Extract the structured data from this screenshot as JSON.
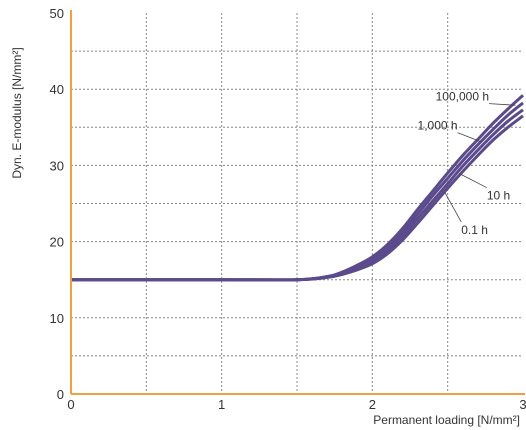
{
  "chart_data": {
    "type": "line",
    "title": "",
    "xlabel": "Permanent loading [N/mm²]",
    "ylabel": "Dyn. E-modulus [N/mm²]",
    "xlim": [
      0,
      3
    ],
    "ylim": [
      0,
      50
    ],
    "x_ticks": [
      "0",
      "1",
      "2",
      "3"
    ],
    "y_ticks": [
      "0",
      "10",
      "20",
      "30",
      "40",
      "50"
    ],
    "grid": true,
    "axis_color": "#f0a040",
    "grid_color": "#888888",
    "line_color": "#5b4a8c",
    "series": [
      {
        "name": "0.1 h",
        "x": [
          0,
          0.5,
          1.0,
          1.5,
          1.7,
          1.8,
          1.9,
          2.0,
          2.1,
          2.2,
          2.3,
          2.4,
          2.5,
          2.6,
          2.7,
          2.8,
          2.9,
          3.0
        ],
        "y": [
          15,
          15,
          15,
          15,
          15.3,
          15.7,
          16.3,
          17.1,
          18.4,
          20.2,
          22.4,
          24.7,
          27.0,
          29.2,
          31.3,
          33.3,
          35.0,
          36.5
        ]
      },
      {
        "name": "10 h",
        "x": [
          0,
          0.5,
          1.0,
          1.5,
          1.7,
          1.8,
          1.9,
          2.0,
          2.1,
          2.2,
          2.3,
          2.4,
          2.5,
          2.6,
          2.7,
          2.8,
          2.9,
          3.0
        ],
        "y": [
          15,
          15,
          15,
          15,
          15.3,
          15.8,
          16.5,
          17.4,
          18.8,
          20.7,
          23.0,
          25.3,
          27.6,
          29.9,
          32.0,
          34.0,
          35.8,
          37.3
        ]
      },
      {
        "name": "1,000 h",
        "x": [
          0,
          0.5,
          1.0,
          1.5,
          1.7,
          1.8,
          1.9,
          2.0,
          2.1,
          2.2,
          2.3,
          2.4,
          2.5,
          2.6,
          2.7,
          2.8,
          2.9,
          3.0
        ],
        "y": [
          15,
          15,
          15,
          15,
          15.4,
          15.9,
          16.7,
          17.7,
          19.2,
          21.2,
          23.6,
          26.0,
          28.3,
          30.6,
          32.7,
          34.7,
          36.6,
          38.2
        ]
      },
      {
        "name": "100,000 h",
        "x": [
          0,
          0.5,
          1.0,
          1.5,
          1.7,
          1.8,
          1.9,
          2.0,
          2.1,
          2.2,
          2.3,
          2.4,
          2.5,
          2.6,
          2.7,
          2.8,
          2.9,
          3.0
        ],
        "y": [
          15,
          15,
          15,
          15,
          15.4,
          16.0,
          16.9,
          18.0,
          19.6,
          21.7,
          24.2,
          26.6,
          29.0,
          31.3,
          33.4,
          35.5,
          37.4,
          39.2
        ]
      }
    ],
    "annotations": [
      {
        "text": "100,000 h",
        "series": "100,000 h",
        "label_at": [
          2.42,
          38.5
        ],
        "point_at": [
          2.95,
          37.9
        ]
      },
      {
        "text": "1,000 h",
        "series": "1,000 h",
        "label_at": [
          2.3,
          34.7
        ],
        "point_at": [
          2.72,
          33.1
        ]
      },
      {
        "text": "10 h",
        "series": "10 h",
        "label_at": [
          2.76,
          25.5
        ],
        "point_at": [
          2.58,
          28.9
        ]
      },
      {
        "text": "0.1 h",
        "series": "0.1 h",
        "label_at": [
          2.59,
          21.0
        ],
        "point_at": [
          2.48,
          26.5
        ]
      }
    ]
  }
}
